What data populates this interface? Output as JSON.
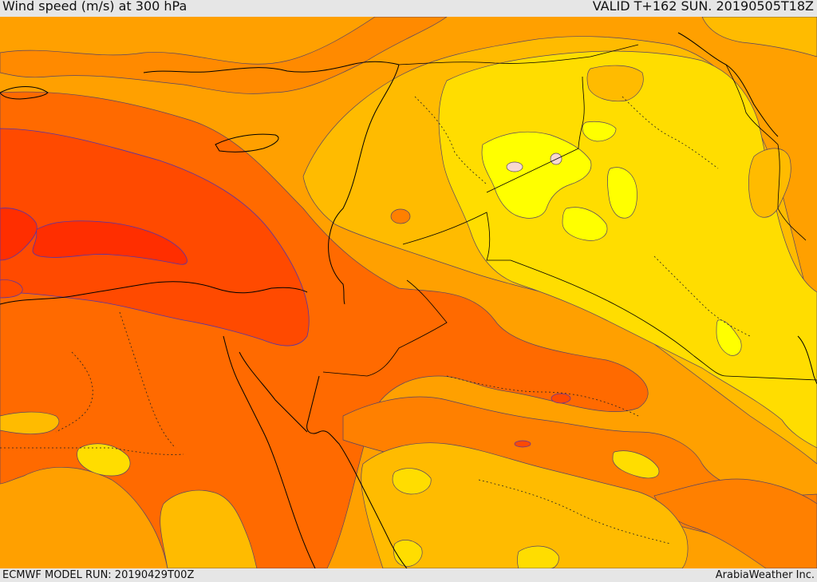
{
  "header": {
    "title": "Wind speed (m/s) at 300 hPa",
    "valid": "VALID T+162 SUN. 20190505T18Z"
  },
  "footer": {
    "model_run": "ECMWF MODEL RUN: 20190429T00Z",
    "provider": "ArabiaWeather Inc."
  },
  "colors": {
    "bg": "#e6e6e6",
    "c_yellow_light": "#ffff00",
    "c_yellow": "#ffdd00",
    "c_amber": "#ffbb00",
    "c_orange_light": "#ffa000",
    "c_orange": "#ff8000",
    "c_orange_dark": "#ff6a00",
    "c_red_orange": "#ff4a00",
    "c_red": "#ff2e00",
    "c_pink": "#f8d8d0",
    "coast": "#000000",
    "contour": "#554466",
    "jet_contour": "#5533aa"
  }
}
